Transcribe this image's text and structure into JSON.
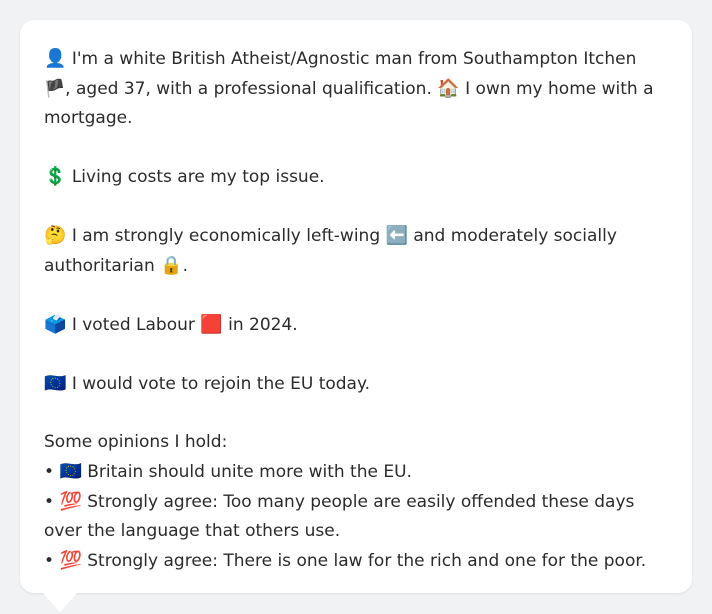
{
  "profile": {
    "intro_emoji": "👤",
    "intro_text": "I'm a white British Atheist/Agnostic man from Southampton Itchen 🏴",
    "intro_text_2": ", aged 37, with a professional qualification. ",
    "home_emoji": "🏠",
    "home_text": " I own my home with a mortgage.",
    "issue_emoji": "💲",
    "issue_text": "Living costs are my top issue.",
    "ideology_emoji": "🤔",
    "ideology_text": "I am strongly economically left-wing ",
    "left_emoji": "⬅️",
    "ideology_text_2": " and moderately socially authoritarian ",
    "lock_emoji": "🔒",
    "ideology_end": ".",
    "vote_emoji": "🗳️",
    "vote_text": "I voted Labour ",
    "labour_emoji": "🟥",
    "vote_text_2": " in 2024.",
    "eu_emoji": "🇪🇺",
    "eu_text": "I would vote to rejoin the EU today.",
    "opinions_heading": "Some opinions I hold:",
    "opinions": [
      {
        "bullet": "•",
        "emoji": "🇪🇺",
        "text": "Britain should unite more with the EU."
      },
      {
        "bullet": "•",
        "emoji": "💯",
        "text": "Strongly agree: Too many people are easily offended these days over the language that others use."
      },
      {
        "bullet": "•",
        "emoji": "💯",
        "text": "Strongly agree: There is one law for the rich and one for the poor."
      }
    ]
  },
  "colors": {
    "background": "#f1f2f4",
    "bubble": "#ffffff",
    "text": "#2b2b2b"
  }
}
